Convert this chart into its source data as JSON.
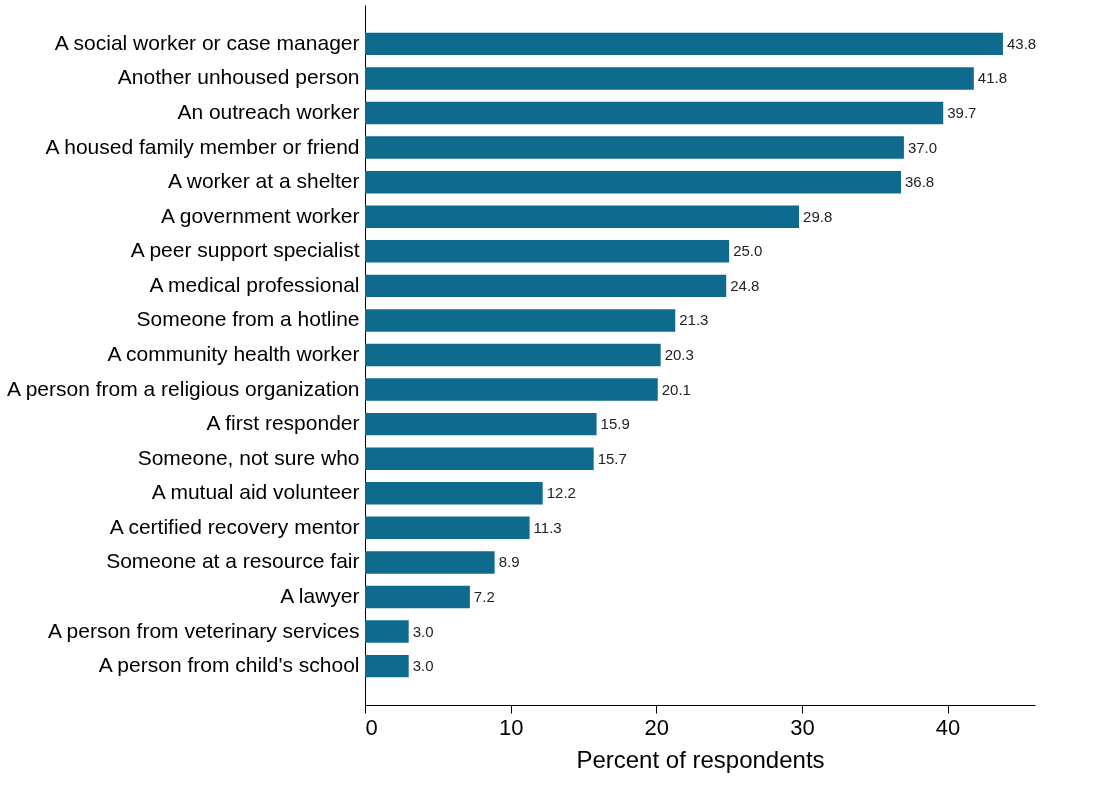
{
  "chart_data": {
    "type": "bar",
    "orientation": "horizontal",
    "xlabel": "Percent of respondents",
    "categories": [
      "A social worker or case manager",
      "Another unhoused person",
      "An outreach worker",
      "A housed family member or friend",
      "A worker at a shelter",
      "A government worker",
      "A peer support specialist",
      "A medical professional",
      "Someone from a hotline",
      "A community health worker",
      "A person from a religious organization",
      "A first responder",
      "Someone, not sure who",
      "A mutual aid volunteer",
      "A certified recovery mentor",
      "Someone at a resource fair",
      "A lawyer",
      "A person from veterinary services",
      "A person from child's school"
    ],
    "values": [
      43.8,
      41.8,
      39.7,
      37.0,
      36.8,
      29.8,
      25.0,
      24.8,
      21.3,
      20.3,
      20.1,
      15.9,
      15.7,
      12.2,
      11.3,
      8.9,
      7.2,
      3.0,
      3.0
    ],
    "value_labels": [
      "43.8",
      "41.8",
      "39.7",
      "37.0",
      "36.8",
      "29.8",
      "25.0",
      "24.8",
      "21.3",
      "20.3",
      "20.1",
      "15.9",
      "15.7",
      "12.2",
      "11.3",
      "8.9",
      "7.2",
      "3.0",
      "3.0"
    ],
    "color": "#0f6b8e",
    "xlim": [
      0,
      46
    ],
    "xticks": [
      0,
      10,
      20,
      30,
      40
    ],
    "grid": false
  }
}
